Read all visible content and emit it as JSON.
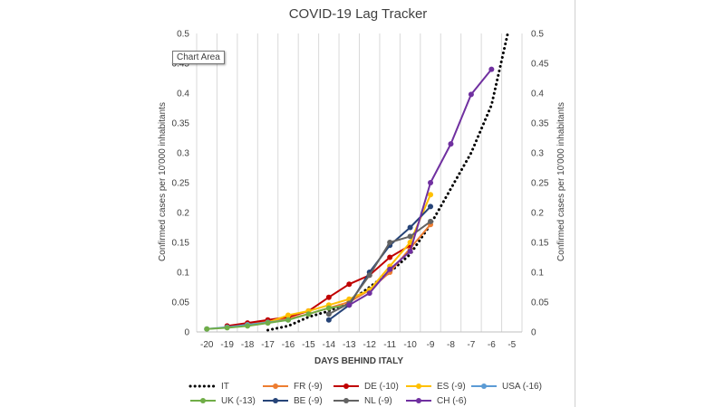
{
  "tooltip": {
    "label": "Chart Area"
  },
  "chart_data": {
    "type": "line",
    "title": "COVID-19 Lag Tracker",
    "xlabel": "DAYS BEHIND ITALY",
    "ylabel_left": "Confirmed  cases per 10'000 inhabitants",
    "ylabel_right": "Confirmed cases per 10'000 inhabitants",
    "xlim": [
      -20.5,
      -4.5
    ],
    "ylim": [
      0,
      0.5
    ],
    "x_ticks": [
      -20,
      -19,
      -18,
      -17,
      -16,
      -15,
      -14,
      -13,
      -12,
      -11,
      -10,
      -9,
      -8,
      -7,
      -6,
      -5
    ],
    "y_ticks": [
      0,
      0.05,
      0.1,
      0.15,
      0.2,
      0.25,
      0.3,
      0.35,
      0.4,
      0.45,
      0.5
    ],
    "y_tick_labels": [
      "0",
      "0.05",
      "0.1",
      "0.15",
      "0.2",
      "0.25",
      "0.3",
      "0.35",
      "0.4",
      "0.45",
      "0.5"
    ],
    "grid": "vertical",
    "legend_position": "bottom",
    "series": [
      {
        "name": "IT",
        "color": "#000000",
        "style": "dotted",
        "markers": false,
        "x": [
          -17,
          -16,
          -15,
          -14,
          -13,
          -12,
          -11,
          -10,
          -9,
          -8,
          -7,
          -6,
          -5.2
        ],
        "y": [
          0.003,
          0.01,
          0.025,
          0.035,
          0.05,
          0.075,
          0.1,
          0.13,
          0.18,
          0.24,
          0.3,
          0.38,
          0.5
        ]
      },
      {
        "name": "FR (-9)",
        "color": "#ed7d31",
        "style": "solid",
        "markers": true,
        "x": [
          -19,
          -18,
          -17,
          -16,
          -15,
          -14,
          -13,
          -12,
          -11,
          -10,
          -9
        ],
        "y": [
          0.008,
          0.012,
          0.018,
          0.022,
          0.03,
          0.04,
          0.05,
          0.07,
          0.1,
          0.14,
          0.18
        ]
      },
      {
        "name": "DE (-10)",
        "color": "#c00000",
        "style": "solid",
        "markers": true,
        "x": [
          -19,
          -18,
          -17,
          -16,
          -15,
          -14,
          -13,
          -12,
          -11,
          -10
        ],
        "y": [
          0.01,
          0.015,
          0.02,
          0.025,
          0.035,
          0.058,
          0.08,
          0.095,
          0.125,
          0.145
        ]
      },
      {
        "name": "ES (-9)",
        "color": "#ffc000",
        "style": "solid",
        "markers": true,
        "x": [
          -18,
          -17,
          -16,
          -15,
          -14,
          -13,
          -12,
          -11,
          -10,
          -9
        ],
        "y": [
          0.012,
          0.016,
          0.028,
          0.035,
          0.045,
          0.055,
          0.07,
          0.11,
          0.15,
          0.23
        ]
      },
      {
        "name": "USA (-16)",
        "color": "#5b9bd5",
        "style": "solid",
        "markers": true,
        "x": [
          -20,
          -19,
          -18,
          -17,
          -16
        ],
        "y": [
          0.005,
          0.008,
          0.012,
          0.016,
          0.02
        ]
      },
      {
        "name": "UK (-13)",
        "color": "#70ad47",
        "style": "solid",
        "markers": true,
        "x": [
          -20,
          -19,
          -18,
          -17,
          -16,
          -15,
          -14,
          -13
        ],
        "y": [
          0.005,
          0.007,
          0.01,
          0.015,
          0.02,
          0.03,
          0.04,
          0.045
        ]
      },
      {
        "name": "BE (-9)",
        "color": "#264478",
        "style": "solid",
        "markers": true,
        "x": [
          -14,
          -13,
          -12,
          -11,
          -10,
          -9
        ],
        "y": [
          0.02,
          0.045,
          0.1,
          0.145,
          0.175,
          0.21
        ]
      },
      {
        "name": "NL (-9)",
        "color": "#636363",
        "style": "solid",
        "markers": true,
        "x": [
          -14,
          -13,
          -12,
          -11,
          -10,
          -9
        ],
        "y": [
          0.03,
          0.048,
          0.095,
          0.15,
          0.16,
          0.185
        ]
      },
      {
        "name": "CH (-6)",
        "color": "#7030a0",
        "style": "solid",
        "markers": true,
        "x": [
          -13,
          -12,
          -11,
          -10,
          -9,
          -8,
          -7,
          -6
        ],
        "y": [
          0.045,
          0.065,
          0.105,
          0.135,
          0.25,
          0.315,
          0.398,
          0.44
        ]
      }
    ]
  }
}
